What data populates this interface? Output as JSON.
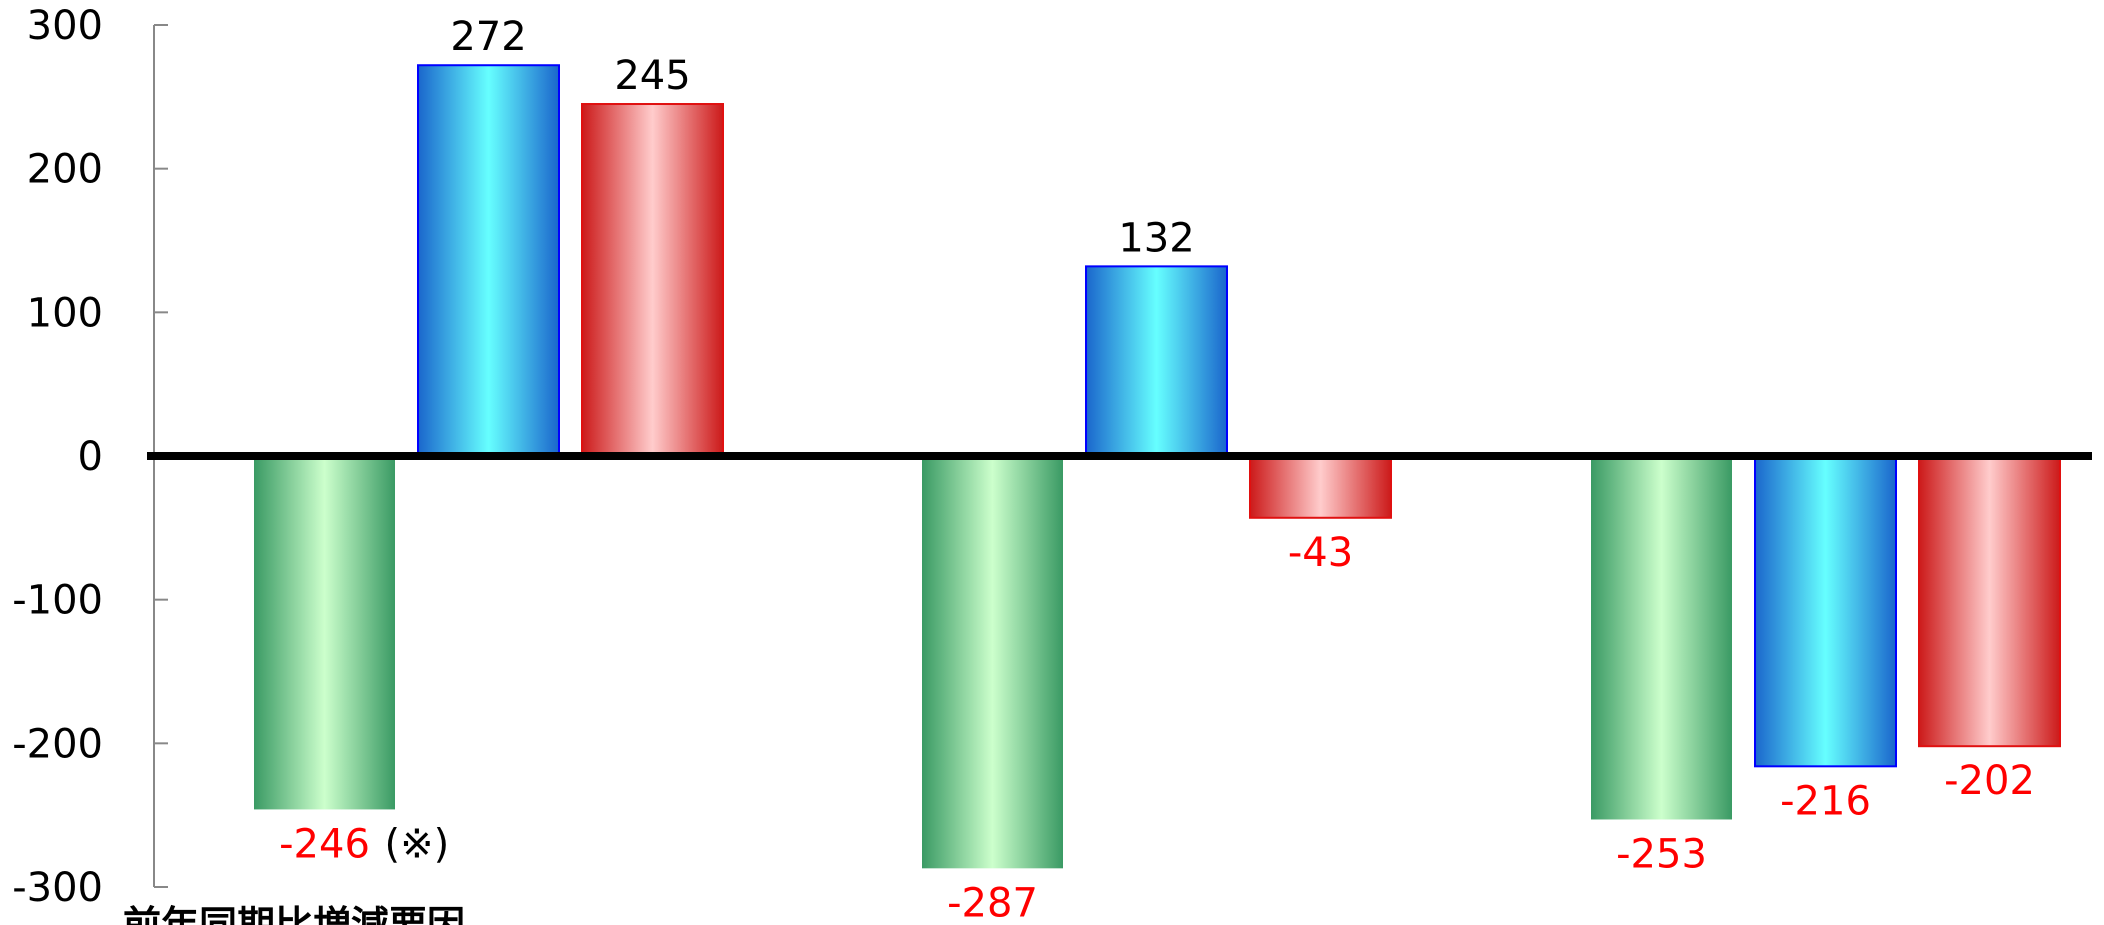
{
  "chart_data": {
    "type": "bar",
    "title": "",
    "xlabel": "",
    "ylabel": "",
    "ylim": [
      -300,
      300
    ],
    "yticks": [
      "300",
      "200",
      "100",
      "0",
      "-100",
      "-200",
      "-300"
    ],
    "categories": [
      "",
      "",
      ""
    ],
    "series": [
      {
        "values": [
          -246,
          -287,
          -253
        ],
        "labels": [
          "-246",
          "-287",
          "-253"
        ]
      },
      {
        "values": [
          272,
          132,
          -216
        ],
        "labels": [
          "272",
          "132",
          "-216"
        ]
      },
      {
        "values": [
          245,
          -43,
          -202
        ],
        "labels": [
          "245",
          "-43",
          "-202"
        ]
      }
    ],
    "grid": false,
    "legend": "none",
    "annotation": "(※)",
    "footer_title": "前年同期比増減要因",
    "colors": {
      "positive_label": "#000000",
      "negative_label": "#ff0000",
      "series_green_dark": "#3a9a64",
      "series_green_light": "#ccffcc",
      "series_blue_dark": "#1a66cc",
      "series_blue_light": "#66ffff",
      "series_blue_edge": "#0000ff",
      "series_red_dark": "#cc1a1a",
      "series_red_light": "#ffcccc",
      "series_red_edge": "#e01010",
      "axis": "#000000"
    }
  }
}
